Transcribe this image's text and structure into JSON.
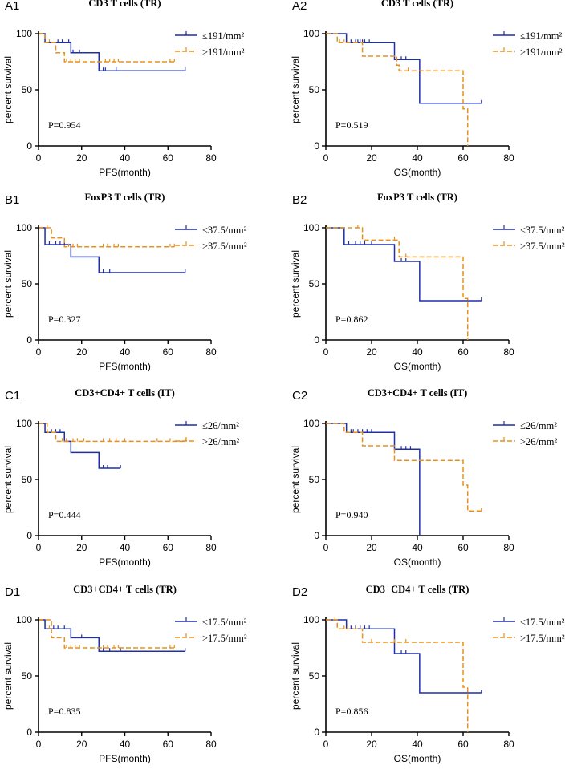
{
  "colors": {
    "series_a": "#1f2fa8",
    "series_b": "#e8901c",
    "axis": "#000000"
  },
  "panels": [
    {
      "id": "A1",
      "title": "CD3 T cells (TR)",
      "xlabel": "PFS(month)",
      "ylabel": "percent survival",
      "pvalue": "P=0.954",
      "chart_data": {
        "type": "line",
        "step": true,
        "xlim": [
          0,
          80
        ],
        "ylim": [
          0,
          100
        ],
        "xticks": [
          0,
          20,
          40,
          60,
          80
        ],
        "yticks": [
          0,
          50,
          100
        ],
        "series": [
          {
            "name": "≤191/mm²",
            "style": "solid",
            "color": "series_a",
            "x": [
              0,
              3,
              15,
              28,
              68
            ],
            "y": [
              100,
              92,
              83,
              67,
              67
            ],
            "censor_x": [
              9,
              11,
              14,
              16,
              19,
              30,
              31,
              36,
              68
            ],
            "censor_y": [
              92,
              92,
              92,
              83,
              83,
              67,
              67,
              67,
              67
            ]
          },
          {
            "name": ">191/mm²",
            "style": "dashed",
            "color": "series_b",
            "x": [
              0,
              3,
              8,
              12,
              63
            ],
            "y": [
              100,
              92,
              83,
              75,
              75
            ],
            "censor_x": [
              5,
              13,
              15,
              17,
              19,
              31,
              33,
              35,
              37,
              61,
              63
            ],
            "censor_y": [
              92,
              75,
              75,
              75,
              75,
              75,
              75,
              75,
              75,
              75,
              75
            ]
          }
        ]
      }
    },
    {
      "id": "A2",
      "title": "CD3 T cells (TR)",
      "xlabel": "OS(month)",
      "ylabel": "percent survival",
      "pvalue": "P=0.519",
      "chart_data": {
        "type": "line",
        "step": true,
        "xlim": [
          0,
          80
        ],
        "ylim": [
          0,
          100
        ],
        "xticks": [
          0,
          20,
          40,
          60,
          80
        ],
        "yticks": [
          0,
          50,
          100
        ],
        "series": [
          {
            "name": "≤191/mm²",
            "style": "solid",
            "color": "series_a",
            "x": [
              0,
              9,
              30,
              41,
              68
            ],
            "y": [
              100,
              92,
              77,
              38,
              38
            ],
            "censor_x": [
              11,
              13,
              14,
              15,
              16,
              17,
              19,
              33,
              35,
              68
            ],
            "censor_y": [
              92,
              92,
              92,
              92,
              92,
              92,
              92,
              77,
              77,
              38
            ]
          },
          {
            "name": ">191/mm²",
            "style": "dashed",
            "color": "series_b",
            "x": [
              0,
              5,
              16,
              31,
              32,
              60,
              62
            ],
            "y": [
              100,
              92,
              80,
              72,
              67,
              33,
              0
            ],
            "censor_x": [
              6,
              8,
              36
            ],
            "censor_y": [
              92,
              92,
              67
            ]
          }
        ]
      }
    },
    {
      "id": "B1",
      "title": "FoxP3 T cells (TR)",
      "xlabel": "PFS(month)",
      "ylabel": "percent survival",
      "pvalue": "P=0.327",
      "chart_data": {
        "type": "line",
        "step": true,
        "xlim": [
          0,
          80
        ],
        "ylim": [
          0,
          100
        ],
        "xticks": [
          0,
          20,
          40,
          60,
          80
        ],
        "yticks": [
          0,
          50,
          100
        ],
        "series": [
          {
            "name": "≤37.5/mm²",
            "style": "solid",
            "color": "series_a",
            "x": [
              0,
              3,
              15,
              28,
              68
            ],
            "y": [
              100,
              85,
              74,
              60,
              60
            ],
            "censor_x": [
              5,
              8,
              10,
              12,
              30,
              33,
              68
            ],
            "censor_y": [
              85,
              85,
              85,
              85,
              60,
              60,
              60
            ]
          },
          {
            "name": ">37.5/mm²",
            "style": "dashed",
            "color": "series_b",
            "x": [
              0,
              6,
              12,
              63
            ],
            "y": [
              100,
              91,
              83,
              83
            ],
            "censor_x": [
              4,
              14,
              16,
              18,
              30,
              32,
              35,
              37,
              61,
              63
            ],
            "censor_y": [
              100,
              83,
              83,
              83,
              83,
              83,
              83,
              83,
              83,
              83
            ]
          }
        ]
      }
    },
    {
      "id": "B2",
      "title": "FoxP3 T cells (TR)",
      "xlabel": "OS(month)",
      "ylabel": "percent survival",
      "pvalue": "P=0.862",
      "chart_data": {
        "type": "line",
        "step": true,
        "xlim": [
          0,
          80
        ],
        "ylim": [
          0,
          100
        ],
        "xticks": [
          0,
          20,
          40,
          60,
          80
        ],
        "yticks": [
          0,
          50,
          100
        ],
        "series": [
          {
            "name": "≤37.5/mm²",
            "style": "solid",
            "color": "series_a",
            "x": [
              0,
              8,
              30,
              41,
              68
            ],
            "y": [
              100,
              85,
              70,
              35,
              35
            ],
            "censor_x": [
              10,
              13,
              15,
              17,
              20,
              33,
              35,
              68
            ],
            "censor_y": [
              85,
              85,
              85,
              85,
              85,
              70,
              70,
              35
            ]
          },
          {
            "name": ">37.5/mm²",
            "style": "dashed",
            "color": "series_b",
            "x": [
              0,
              16,
              32,
              60,
              62
            ],
            "y": [
              100,
              89,
              74,
              37,
              0
            ],
            "censor_x": [
              14,
              30,
              35
            ],
            "censor_y": [
              100,
              89,
              74
            ]
          }
        ]
      }
    },
    {
      "id": "C1",
      "title": "CD3+CD4+ T cells (IT)",
      "xlabel": "PFS(month)",
      "ylabel": "percent survival",
      "pvalue": "P=0.444",
      "chart_data": {
        "type": "line",
        "step": true,
        "xlim": [
          0,
          80
        ],
        "ylim": [
          0,
          100
        ],
        "xticks": [
          0,
          20,
          40,
          60,
          80
        ],
        "yticks": [
          0,
          50,
          100
        ],
        "series": [
          {
            "name": "≤26/mm²",
            "style": "solid",
            "color": "series_a",
            "x": [
              0,
              3,
              12,
              15,
              28,
              38
            ],
            "y": [
              100,
              92,
              84,
              74,
              60,
              60
            ],
            "censor_x": [
              6,
              8,
              10,
              13,
              30,
              32,
              38
            ],
            "censor_y": [
              92,
              92,
              92,
              84,
              60,
              60,
              60
            ]
          },
          {
            "name": ">26/mm²",
            "style": "dashed",
            "color": "series_b",
            "x": [
              0,
              4,
              8,
              68
            ],
            "y": [
              100,
              92,
              84,
              84
            ],
            "censor_x": [
              11,
              13,
              16,
              18,
              21,
              30,
              33,
              36,
              40,
              55,
              61,
              68
            ],
            "censor_y": [
              84,
              84,
              84,
              84,
              84,
              84,
              84,
              84,
              84,
              84,
              84,
              84
            ]
          }
        ]
      }
    },
    {
      "id": "C2",
      "title": "CD3+CD4+ T cells (IT)",
      "xlabel": "OS(month)",
      "ylabel": "percent survival",
      "pvalue": "P=0.940",
      "chart_data": {
        "type": "line",
        "step": true,
        "xlim": [
          0,
          80
        ],
        "ylim": [
          0,
          100
        ],
        "xticks": [
          0,
          20,
          40,
          60,
          80
        ],
        "yticks": [
          0,
          50,
          100
        ],
        "series": [
          {
            "name": "≤26/mm²",
            "style": "solid",
            "color": "series_a",
            "x": [
              0,
              9,
              30,
              41
            ],
            "y": [
              100,
              92,
              77,
              0
            ],
            "censor_x": [
              11,
              12,
              14,
              16,
              18,
              20,
              33,
              35,
              37
            ],
            "censor_y": [
              92,
              92,
              92,
              92,
              92,
              92,
              77,
              77,
              77
            ]
          },
          {
            "name": ">26/mm²",
            "style": "dashed",
            "color": "series_b",
            "x": [
              0,
              8,
              16,
              30,
              60,
              62,
              68
            ],
            "y": [
              100,
              92,
              80,
              67,
              45,
              22,
              22
            ],
            "censor_x": [
              68
            ],
            "censor_y": [
              22
            ]
          }
        ]
      }
    },
    {
      "id": "D1",
      "title": "CD3+CD4+ T cells (TR)",
      "xlabel": "PFS(month)",
      "ylabel": "percent survival",
      "pvalue": "P=0.835",
      "chart_data": {
        "type": "line",
        "step": true,
        "xlim": [
          0,
          80
        ],
        "ylim": [
          0,
          100
        ],
        "xticks": [
          0,
          20,
          40,
          60,
          80
        ],
        "yticks": [
          0,
          50,
          100
        ],
        "series": [
          {
            "name": "≤17.5/mm²",
            "style": "solid",
            "color": "series_a",
            "x": [
              0,
              3,
              15,
              28,
              68
            ],
            "y": [
              100,
              92,
              84,
              72,
              72
            ],
            "censor_x": [
              7,
              9,
              12,
              20,
              30,
              33,
              38,
              68
            ],
            "censor_y": [
              92,
              92,
              92,
              84,
              72,
              72,
              72,
              72
            ]
          },
          {
            "name": ">17.5/mm²",
            "style": "dashed",
            "color": "series_b",
            "x": [
              0,
              6,
              12,
              63
            ],
            "y": [
              100,
              84,
              75,
              75
            ],
            "censor_x": [
              5,
              13,
              15,
              17,
              19,
              30,
              32,
              35,
              37,
              61,
              63
            ],
            "censor_y": [
              92,
              75,
              75,
              75,
              75,
              75,
              75,
              75,
              75,
              75,
              75
            ]
          }
        ]
      }
    },
    {
      "id": "D2",
      "title": "CD3+CD4+ T cells (TR)",
      "xlabel": "OS(month)",
      "ylabel": "percent survival",
      "pvalue": "P=0.856",
      "chart_data": {
        "type": "line",
        "step": true,
        "xlim": [
          0,
          80
        ],
        "ylim": [
          0,
          100
        ],
        "xticks": [
          0,
          20,
          40,
          60,
          80
        ],
        "yticks": [
          0,
          50,
          100
        ],
        "series": [
          {
            "name": "≤17.5/mm²",
            "style": "solid",
            "color": "series_a",
            "x": [
              0,
              9,
              30,
              41,
              68
            ],
            "y": [
              100,
              92,
              70,
              35,
              35
            ],
            "censor_x": [
              11,
              13,
              15,
              17,
              19,
              33,
              35,
              68
            ],
            "censor_y": [
              92,
              92,
              92,
              92,
              92,
              70,
              70,
              35
            ]
          },
          {
            "name": ">17.5/mm²",
            "style": "dashed",
            "color": "series_b",
            "x": [
              0,
              5,
              16,
              60,
              62
            ],
            "y": [
              100,
              92,
              80,
              40,
              0
            ],
            "censor_x": [
              4,
              8,
              20,
              30,
              35
            ],
            "censor_y": [
              100,
              92,
              80,
              80,
              80
            ]
          }
        ]
      }
    }
  ]
}
